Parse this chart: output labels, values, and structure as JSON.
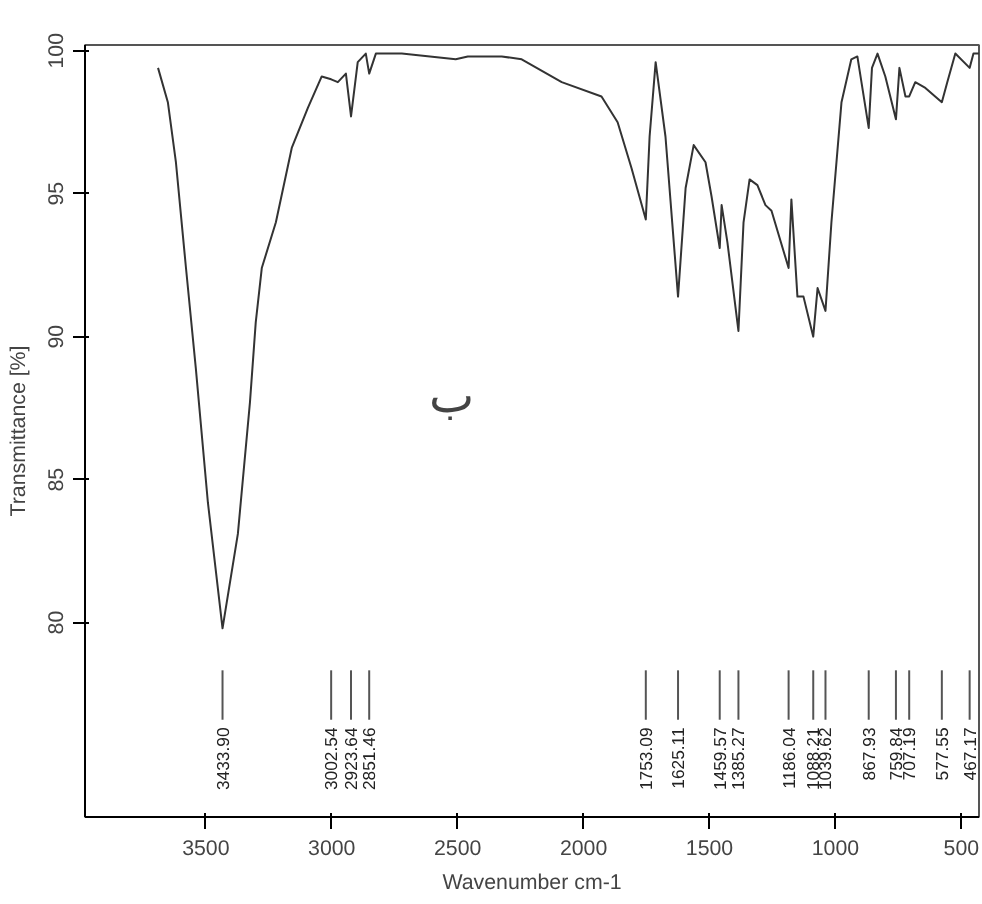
{
  "chart_data": {
    "type": "line",
    "xlabel": "Wavenumber cm-1",
    "ylabel": "Transmittance [%]",
    "xlim": [
      3980,
      430
    ],
    "ylim": [
      73.2,
      100.2
    ],
    "xticks": [
      3500,
      3000,
      2500,
      2000,
      1500,
      1000,
      500
    ],
    "yticks": [
      80,
      85,
      90,
      95,
      100
    ],
    "grid": false,
    "marker": "none",
    "line_style": "solid",
    "series": [
      {
        "color": "#333333",
        "x": [
          3690,
          3651,
          3619,
          3579,
          3540,
          3492,
          3433.9,
          3373,
          3325,
          3302,
          3278,
          3222,
          3159,
          3095,
          3040,
          3002.54,
          2976,
          2944,
          2923.64,
          2897,
          2865,
          2851.46,
          2825,
          2722,
          2508,
          2460,
          2405,
          2325,
          2246,
          2087,
          1929,
          1865,
          1810,
          1753.09,
          1738,
          1714,
          1675,
          1625.11,
          1595,
          1563,
          1516,
          1492,
          1459.57,
          1452,
          1429,
          1385.27,
          1365,
          1341,
          1310,
          1278,
          1254,
          1186.04,
          1175,
          1151,
          1127,
          1088.21,
          1071,
          1039.62,
          1016,
          976,
          937,
          913,
          867.93,
          855,
          833,
          802,
          759.84,
          746,
          722,
          707.19,
          683,
          643,
          577.55,
          556,
          524,
          467.17,
          452,
          430
        ],
        "values": [
          99.4,
          98.2,
          96.1,
          92.4,
          88.9,
          84.2,
          79.8,
          83.1,
          87.7,
          90.5,
          92.4,
          94.0,
          96.6,
          98.0,
          99.1,
          99.0,
          98.9,
          99.2,
          97.7,
          99.6,
          99.9,
          99.2,
          99.9,
          99.9,
          99.7,
          99.8,
          99.8,
          99.8,
          99.7,
          98.9,
          98.4,
          97.5,
          95.9,
          94.1,
          97.0,
          99.6,
          97.0,
          91.4,
          95.2,
          96.7,
          96.1,
          94.9,
          93.1,
          94.6,
          93.3,
          90.2,
          94.0,
          95.5,
          95.3,
          94.6,
          94.4,
          92.4,
          94.8,
          91.4,
          91.4,
          90.0,
          91.7,
          90.9,
          94.0,
          98.2,
          99.7,
          99.8,
          97.3,
          99.4,
          99.9,
          99.1,
          97.6,
          99.4,
          98.4,
          98.4,
          98.9,
          98.7,
          98.2,
          98.9,
          99.9,
          99.4,
          99.9,
          99.9
        ]
      }
    ],
    "ref_lines": [
      {
        "axis": "x",
        "value": 3433.9,
        "label": "3433.90"
      },
      {
        "axis": "x",
        "value": 3002.54,
        "label": "3002.54"
      },
      {
        "axis": "x",
        "value": 2923.64,
        "label": "2923.64"
      },
      {
        "axis": "x",
        "value": 2851.46,
        "label": "2851.46"
      },
      {
        "axis": "x",
        "value": 1753.09,
        "label": "1753.09"
      },
      {
        "axis": "x",
        "value": 1625.11,
        "label": "1625.11"
      },
      {
        "axis": "x",
        "value": 1459.57,
        "label": "1459.57"
      },
      {
        "axis": "x",
        "value": 1385.27,
        "label": "1385.27"
      },
      {
        "axis": "x",
        "value": 1186.04,
        "label": "1186.04"
      },
      {
        "axis": "x",
        "value": 1088.21,
        "label": "1088.21"
      },
      {
        "axis": "x",
        "value": 1039.62,
        "label": "1039.62"
      },
      {
        "axis": "x",
        "value": 867.93,
        "label": "867.93"
      },
      {
        "axis": "x",
        "value": 759.84,
        "label": "759.84"
      },
      {
        "axis": "x",
        "value": 707.19,
        "label": "707.19"
      },
      {
        "axis": "x",
        "value": 577.55,
        "label": "577.55"
      },
      {
        "axis": "x",
        "value": 467.17,
        "label": "467.17"
      }
    ],
    "annotations": [
      "ب"
    ]
  }
}
